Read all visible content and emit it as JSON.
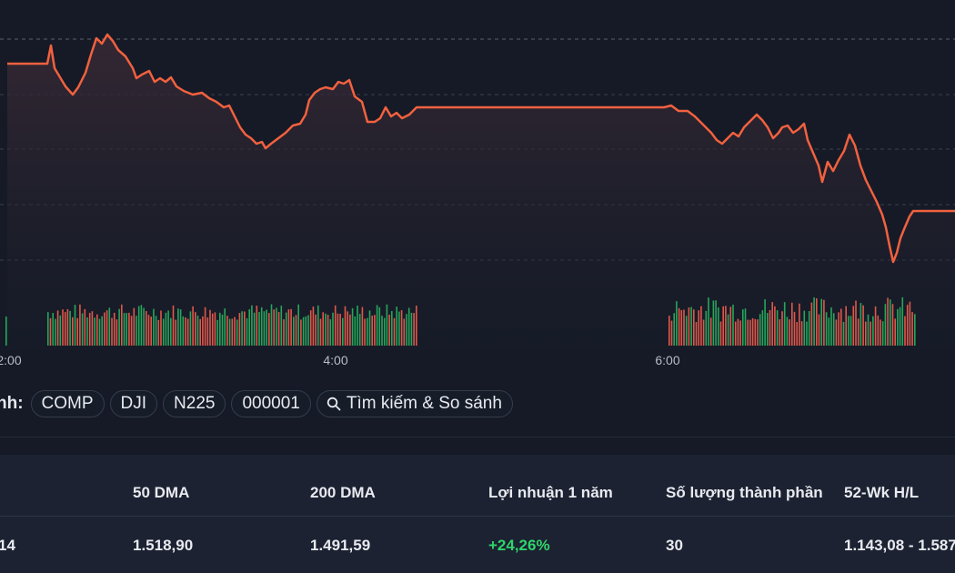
{
  "chart": {
    "line_color": "#f2613f",
    "up_color": "#26a65b",
    "down_color": "#e0574a",
    "time_labels": [
      "2:00",
      "4:00",
      "6:00"
    ]
  },
  "chart_data": {
    "type": "line",
    "x_labels": [
      "2:00",
      "4:00",
      "6:00"
    ],
    "note_series": "intraday index price with volume bars"
  },
  "compare": {
    "prefix": "nh:",
    "chips": [
      "COMP",
      "DJI",
      "N225",
      "000001"
    ],
    "search_label": "Tìm kiếm & So sánh"
  },
  "stats": {
    "headers": [
      "50 DMA",
      "200 DMA",
      "Lợi nhuận 1 năm",
      "Số lượng thành phần",
      "52-Wk H/L"
    ],
    "first_value": "14",
    "values": [
      "1.518,90",
      "1.491,59",
      "+24,26%",
      "30",
      "1.143,08 - 1.587"
    ],
    "positive_color": "#2fd46c"
  }
}
